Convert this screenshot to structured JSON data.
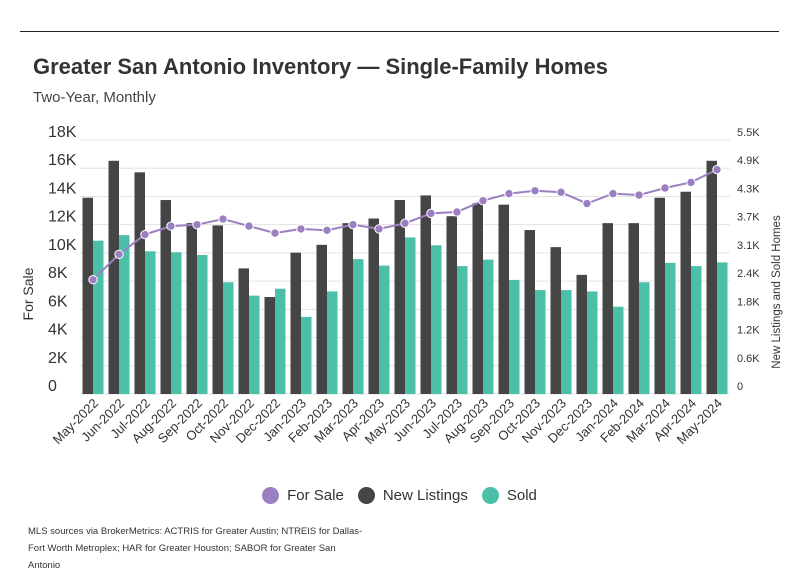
{
  "header": {
    "title": "Greater San Antonio Inventory — Single-Family Homes",
    "subtitle": "Two-Year, Monthly"
  },
  "source_note": "MLS sources via BrokerMetrics: ACTRIS for Greater Austin; NTREIS for Dallas-Fort Worth Metroplex; HAR for Greater Houston; SABOR for Greater San Antonio",
  "colors": {
    "for_sale": "#9b7fc0",
    "new_listings": "#454545",
    "sold": "#4cbfa9",
    "grid": "#e3e3e3"
  },
  "chart_data": {
    "type": "bar",
    "categories": [
      "May-2022",
      "Jun-2022",
      "Jul-2022",
      "Aug-2022",
      "Sep-2022",
      "Oct-2022",
      "Nov-2022",
      "Dec-2022",
      "Jan-2023",
      "Feb-2023",
      "Mar-2023",
      "Apr-2023",
      "May-2023",
      "Jun-2023",
      "Jul-2023",
      "Aug-2023",
      "Sep-2023",
      "Oct-2023",
      "Nov-2023",
      "Dec-2023",
      "Jan-2024",
      "Feb-2024",
      "Mar-2024",
      "Apr-2024",
      "May-2024"
    ],
    "left_axis": {
      "label": "For Sale",
      "ticks": [
        "0",
        "2K",
        "4K",
        "6K",
        "8K",
        "10K",
        "12K",
        "14K",
        "16K",
        "18K"
      ],
      "min": 0,
      "max": 18000
    },
    "right_axis": {
      "label": "New Listings and Sold Homes",
      "ticks": [
        "0",
        "0.6K",
        "1.2K",
        "1.8K",
        "2.4K",
        "3.1K",
        "3.7K",
        "4.3K",
        "4.9K",
        "5.5K"
      ],
      "min": 0,
      "max": 5500
    },
    "series": [
      {
        "name": "For Sale",
        "type": "line",
        "axis": "left",
        "values": [
          8100,
          9900,
          11300,
          11900,
          12000,
          12400,
          11900,
          11400,
          11700,
          11600,
          12000,
          11700,
          12100,
          12800,
          12900,
          13700,
          14200,
          14400,
          14300,
          13500,
          14200,
          14100,
          14600,
          15000,
          15900
        ]
      },
      {
        "name": "New Listings",
        "type": "bar",
        "axis": "right",
        "values": [
          4250,
          5050,
          4800,
          4200,
          3700,
          3650,
          2720,
          2100,
          3060,
          3230,
          3700,
          3800,
          4200,
          4300,
          3850,
          4130,
          4100,
          3550,
          3180,
          2580,
          3700,
          3700,
          4250,
          4380,
          5050
        ]
      },
      {
        "name": "Sold",
        "type": "bar",
        "axis": "right",
        "values": [
          3320,
          3440,
          3090,
          3070,
          3010,
          2420,
          2130,
          2280,
          1670,
          2220,
          2920,
          2780,
          3390,
          3220,
          2770,
          2910,
          2470,
          2250,
          2250,
          2220,
          1890,
          2420,
          2840,
          2770,
          2850
        ]
      }
    ],
    "legend": {
      "position": "bottom",
      "items": [
        "For Sale",
        "New Listings",
        "Sold"
      ]
    },
    "grid": true
  }
}
